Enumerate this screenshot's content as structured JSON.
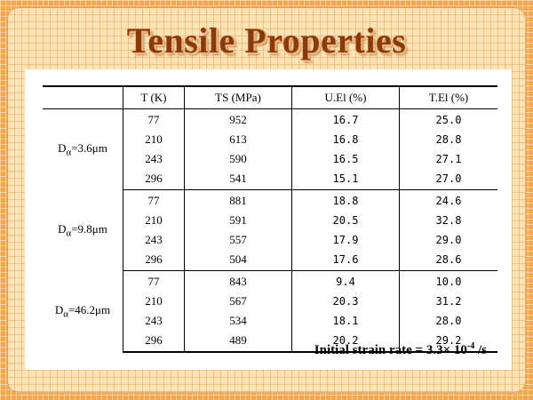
{
  "title": "Tensile Properties",
  "table": {
    "headers": [
      "",
      "T (K)",
      "TS (MPa)",
      "U.El (%)",
      "T.El (%)"
    ],
    "groups": [
      {
        "label_prefix": "D",
        "label_sub": "α",
        "label_value": "=3.6μm",
        "rows": [
          [
            "77",
            "952",
            "16.7",
            "25.0"
          ],
          [
            "210",
            "613",
            "16.8",
            "28.8"
          ],
          [
            "243",
            "590",
            "16.5",
            "27.1"
          ],
          [
            "296",
            "541",
            "15.1",
            "27.0"
          ]
        ]
      },
      {
        "label_prefix": "D",
        "label_sub": "α",
        "label_value": "=9.8μm",
        "rows": [
          [
            "77",
            "881",
            "18.8",
            "24.6"
          ],
          [
            "210",
            "591",
            "20.5",
            "32.8"
          ],
          [
            "243",
            "557",
            "17.9",
            "29.0"
          ],
          [
            "296",
            "504",
            "17.6",
            "28.6"
          ]
        ]
      },
      {
        "label_prefix": "D",
        "label_sub": "α",
        "label_value": "=46.2μm",
        "rows": [
          [
            "77",
            "843",
            "9.4",
            "10.0"
          ],
          [
            "210",
            "567",
            "20.3",
            "31.2"
          ],
          [
            "243",
            "534",
            "18.1",
            "28.0"
          ],
          [
            "296",
            "489",
            "20.2",
            "29.2"
          ]
        ]
      }
    ]
  },
  "note": {
    "text": "Initial strain rate = 3.3× 10",
    "exponent": "-4",
    "unit": " /s"
  }
}
